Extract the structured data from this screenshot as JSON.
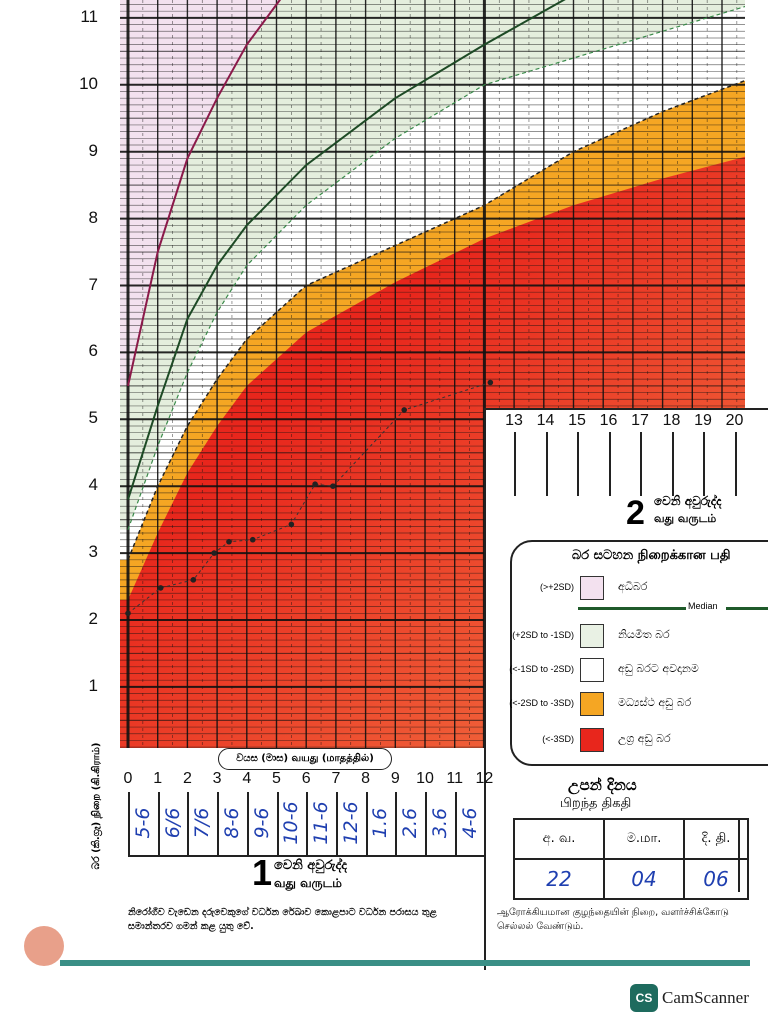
{
  "chart_data": {
    "type": "line",
    "title": "",
    "xlabel": "වයස (මාස) வயது (மாதத்தில்)",
    "ylabel": "බර (කි.ග්‍රෑ) நிறை (கி.கிராம்)",
    "xlim": [
      0,
      21
    ],
    "ylim": [
      0,
      11
    ],
    "grid": true,
    "y_ticks": [
      "1",
      "2",
      "3",
      "4",
      "5",
      "6",
      "7",
      "8",
      "9",
      "10",
      "11"
    ],
    "x_ticks_year1": [
      "0",
      "1",
      "2",
      "3",
      "4",
      "5",
      "6",
      "7",
      "8",
      "9",
      "10",
      "11",
      "12"
    ],
    "x_ticks_year2": [
      "13",
      "14",
      "15",
      "16",
      "17",
      "18",
      "19",
      "20"
    ],
    "reference_curves": {
      "months": [
        0,
        1,
        2,
        3,
        4,
        6,
        9,
        12,
        15,
        18,
        21
      ],
      "minus3sd": [
        2.3,
        3.3,
        4.2,
        4.9,
        5.5,
        6.3,
        7.05,
        7.7,
        8.2,
        8.6,
        8.95
      ],
      "minus2sd": [
        2.9,
        4.0,
        4.9,
        5.6,
        6.2,
        7.0,
        7.6,
        8.2,
        9.0,
        9.6,
        10.1
      ],
      "minus1sd": [
        3.35,
        4.6,
        5.7,
        6.6,
        7.3,
        8.2,
        9.2,
        10.0,
        10.4,
        10.8,
        11.2
      ],
      "median": [
        3.8,
        5.2,
        6.5,
        7.3,
        7.9,
        8.8,
        9.8,
        10.6,
        11.35,
        12.0,
        12.6
      ],
      "plus2sd": [
        5.5,
        7.5,
        8.9,
        9.8,
        10.6,
        11.8,
        13,
        14,
        15,
        16,
        17
      ]
    },
    "zone_colors": {
      "above_plus2sd": "#f3e1ef",
      "plus2_to_minus1": "#e4eedd",
      "minus1_to_minus2": "#ffffff",
      "minus2_to_minus3": "#f5a623",
      "below_minus3": "#e8261c"
    },
    "series": [
      {
        "x": [
          0,
          1.1,
          2.2,
          2.9,
          3.4,
          4.2,
          5.5,
          6.3,
          6.9,
          9.3,
          12.2
        ],
        "y": [
          2.1,
          2.48,
          2.6,
          3.0,
          3.17,
          3.2,
          3.43,
          4.03,
          4.0,
          5.14,
          5.55
        ]
      }
    ]
  },
  "axis": {
    "age_caption": "වයස (මාස)  வயது (மாதத்தில்)",
    "weight_caption": "බර (කි.ග්‍රෑ)  நிறை (கி.கிராம்)"
  },
  "visit_dates": [
    "5-6",
    "6/6",
    "7/6",
    "8-6",
    "9-6",
    "10-6",
    "11-6",
    "12-6",
    "1.6",
    "2.6",
    "3.6",
    "4-6"
  ],
  "year1": {
    "number": "1",
    "sinhala": "වෙනි අවුරුද්ද",
    "tamil": "வது வருடம்"
  },
  "year2": {
    "number": "2",
    "sinhala": "වෙනි අවුරුද්ද",
    "tamil": "வது வருடம்"
  },
  "legend": {
    "title": "බර සටහන  நிறைக்கான பதி",
    "median_label": "Median",
    "items": [
      {
        "code": "(>+2SD)",
        "label": "අධිබර",
        "color": "#f3e1ef"
      },
      {
        "code": "(+2SD to -1SD)",
        "label": "නියමිත බර",
        "color": "#e9f1e4"
      },
      {
        "code": "(<-1SD to -2SD)",
        "label": "අඩු බරට අවදානම",
        "color": "#ffffff"
      },
      {
        "code": "(<-2SD to -3SD)",
        "label": "මධ්‍යස්ථ අඩු බර",
        "color": "#f5a623"
      },
      {
        "code": "(<-3SD)",
        "label": "උග්‍ර අඩු බර",
        "color": "#e8261c"
      }
    ]
  },
  "birth_date": {
    "title_si": "උපන් දිනය",
    "title_ta": "பிறந்த திகதி",
    "headers": [
      "අ. வ.",
      "ම.மா.",
      "දි. தி."
    ],
    "values": [
      "22",
      "04",
      "06"
    ]
  },
  "footnotes": {
    "sinhala": "නිරෝගීව වැඩෙන දරුවෙකුගේ වර්ධන රේඛාව කොළපාට වර්ධන පරාසය තුළ සමාන්තරව ගමන් කළ යුතු වේ.",
    "tamil": "ஆரோக்கியமான குழந்தையின் நிறை, வளர்ச்சிக்கோடு செல்லல் வேண்டும்."
  },
  "watermark": "CamScanner"
}
